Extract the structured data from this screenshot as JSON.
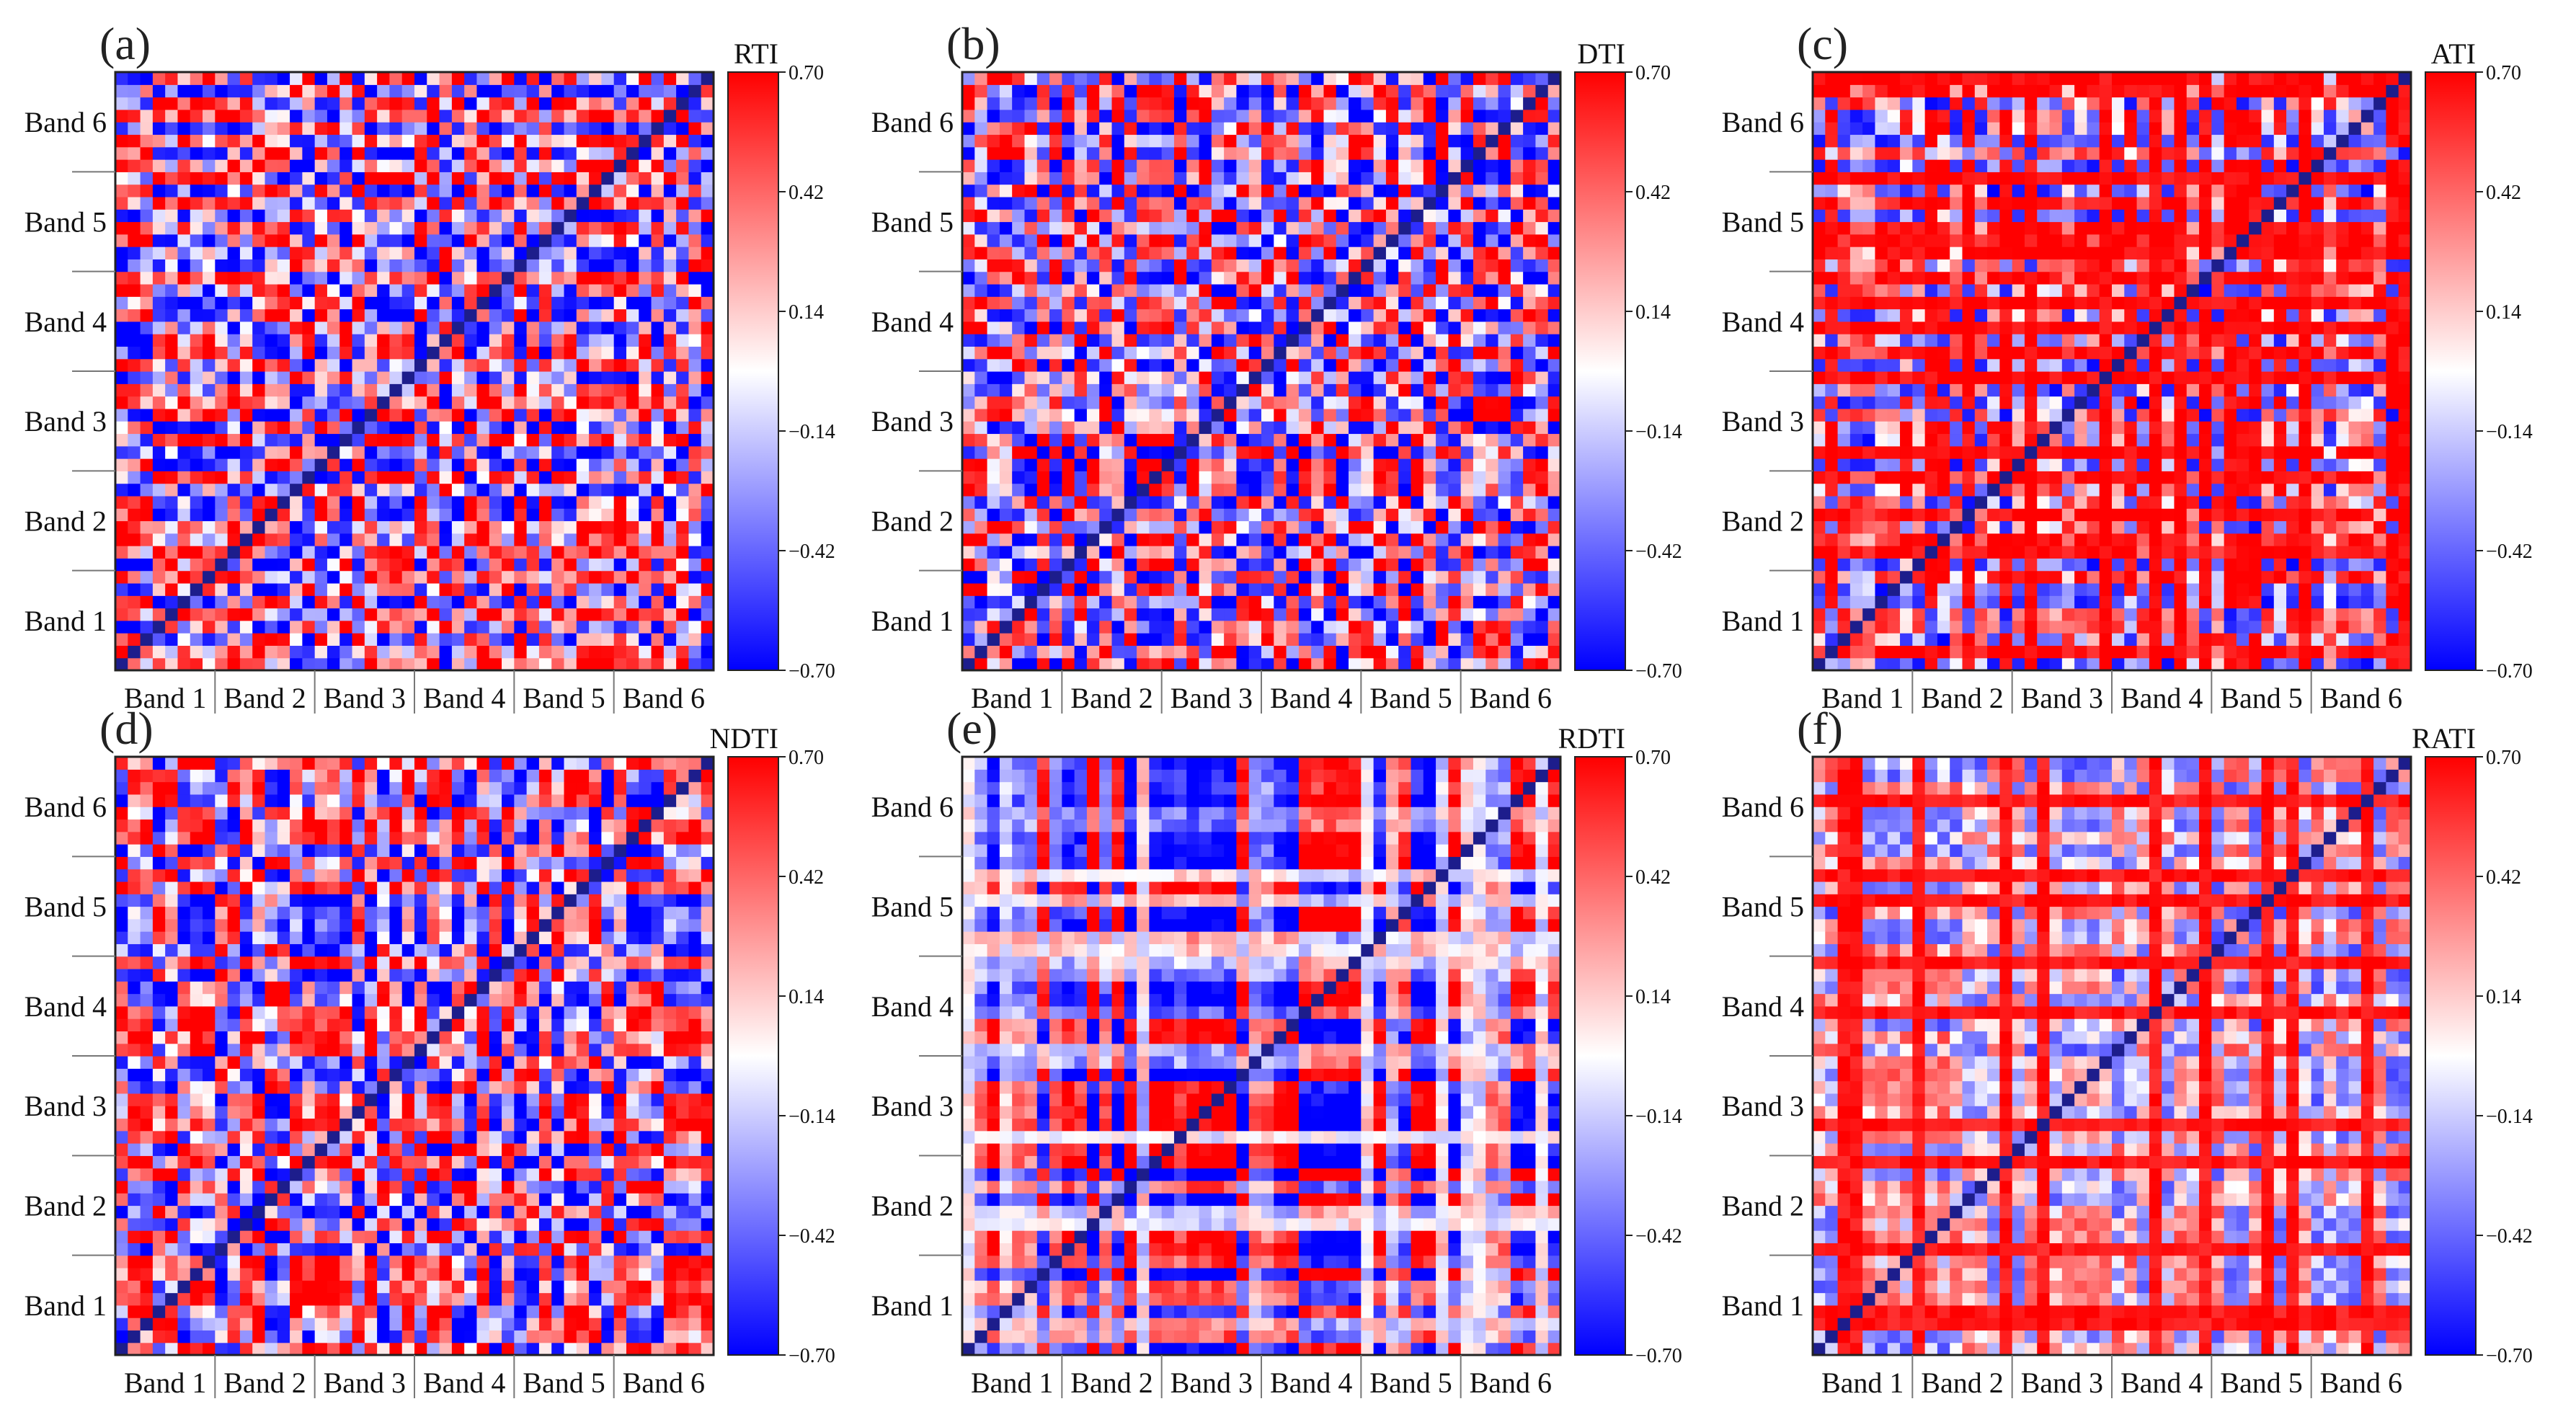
{
  "figure": {
    "colorscale": {
      "low": "#0000ff",
      "mid": "#ffffff",
      "high": "#ff0000"
    },
    "grid_size": 48
  },
  "chart_data": [
    {
      "type": "heatmap",
      "panel_label": "(a)",
      "colorbar_title": "RTI",
      "colorbar_ticks": [
        "0.70",
        "0.42",
        "0.14",
        "−0.14",
        "−0.42",
        "−0.70"
      ],
      "colorbar_range": [
        -0.7,
        0.7
      ],
      "x_tick_labels": [
        "Band  1",
        "Band  2",
        "Band  3",
        "Band  4",
        "Band  5",
        "Band  6"
      ],
      "y_tick_labels": [
        "Band 6",
        "Band 5",
        "Band 4",
        "Band 3",
        "Band 2",
        "Band 1"
      ],
      "pattern": "ratio",
      "seed": 11
    },
    {
      "type": "heatmap",
      "panel_label": "(b)",
      "colorbar_title": "DTI",
      "colorbar_ticks": [
        "0.70",
        "0.42",
        "0.14",
        "−0.14",
        "−0.42",
        "−0.70"
      ],
      "colorbar_range": [
        -0.7,
        0.7
      ],
      "x_tick_labels": [
        "Band  1",
        "Band  2",
        "Band  3",
        "Band  4",
        "Band  5",
        "Band  6"
      ],
      "y_tick_labels": [
        "Band  6",
        "Band  5",
        "Band  4",
        "Band  3",
        "Band  2",
        "Band  1"
      ],
      "pattern": "difference",
      "seed": 23
    },
    {
      "type": "heatmap",
      "panel_label": "(c)",
      "colorbar_title": "ATI",
      "colorbar_ticks": [
        "0.70",
        "0.42",
        "0.14",
        "−0.14",
        "−0.42",
        "−0.70"
      ],
      "colorbar_range": [
        -0.7,
        0.7
      ],
      "x_tick_labels": [
        "Band  1",
        "Band  2",
        "Band  3",
        "Band  4",
        "Band  5",
        "Band  6"
      ],
      "y_tick_labels": [
        "Band  6",
        "Band  5",
        "Band  4",
        "Band  3",
        "Band  2",
        "Band  1"
      ],
      "pattern": "additive",
      "seed": 37
    },
    {
      "type": "heatmap",
      "panel_label": "(d)",
      "colorbar_title": "NDTI",
      "colorbar_ticks": [
        "0.70",
        "0.42",
        "0.14",
        "−0.14",
        "−0.42",
        "−0.70"
      ],
      "colorbar_range": [
        -0.7,
        0.7
      ],
      "x_tick_labels": [
        "Band  1",
        "Band  2",
        "Band  3",
        "Band  4",
        "Band  5",
        "Band  6"
      ],
      "y_tick_labels": [
        "Band 6",
        "Band 5",
        "Band 4",
        "Band 3",
        "Band 2",
        "Band 1"
      ],
      "pattern": "ratio",
      "seed": 53
    },
    {
      "type": "heatmap",
      "panel_label": "(e)",
      "colorbar_title": "RDTI",
      "colorbar_ticks": [
        "0.70",
        "0.42",
        "0.14",
        "−0.14",
        "−0.42",
        "−0.70"
      ],
      "colorbar_range": [
        -0.7,
        0.7
      ],
      "x_tick_labels": [
        "Band  1",
        "Band  2",
        "Band  3",
        "Band  4",
        "Band  5",
        "Band  6"
      ],
      "y_tick_labels": [
        "Band  6",
        "Band  5",
        "Band  4",
        "Band  3",
        "Band  2",
        "Band  1"
      ],
      "pattern": "relative",
      "seed": 71
    },
    {
      "type": "heatmap",
      "panel_label": "(f)",
      "colorbar_title": "RATI",
      "colorbar_ticks": [
        "0.70",
        "0.42",
        "0.14",
        "−0.14",
        "−0.42",
        "−0.70"
      ],
      "colorbar_range": [
        -0.7,
        0.7
      ],
      "x_tick_labels": [
        "Band  1",
        "Band  2",
        "Band  3",
        "Band  4",
        "Band  5",
        "Band  6"
      ],
      "y_tick_labels": [
        "Band  6",
        "Band  5",
        "Band  4",
        "Band  3",
        "Band  2",
        "Band  1"
      ],
      "pattern": "ratio-additive",
      "seed": 89
    }
  ]
}
